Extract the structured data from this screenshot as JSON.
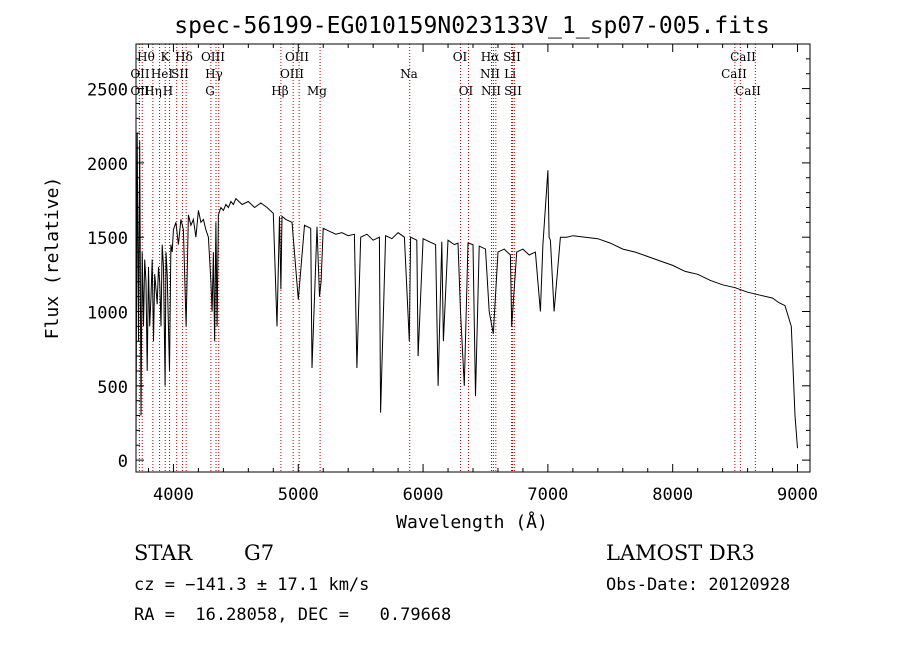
{
  "chart_data": {
    "type": "line",
    "title": "spec-56199-EG010159N023133V_1_sp07-005.fits",
    "xlabel": "Wavelength (Å)",
    "ylabel": "Flux (relative)",
    "xlim": [
      3700,
      9100
    ],
    "ylim": [
      -80,
      2800
    ],
    "x_ticks": [
      4000,
      5000,
      6000,
      7000,
      8000,
      9000
    ],
    "y_ticks": [
      0,
      500,
      1000,
      1500,
      2000,
      2500
    ],
    "series": [
      {
        "name": "spectrum",
        "x": [
          3700,
          3710,
          3720,
          3730,
          3740,
          3750,
          3760,
          3770,
          3780,
          3790,
          3800,
          3810,
          3820,
          3830,
          3840,
          3850,
          3860,
          3870,
          3880,
          3890,
          3900,
          3910,
          3920,
          3933,
          3940,
          3950,
          3968,
          3980,
          3990,
          4000,
          4020,
          4040,
          4060,
          4080,
          4101,
          4120,
          4140,
          4160,
          4180,
          4200,
          4220,
          4240,
          4260,
          4280,
          4300,
          4310,
          4320,
          4330,
          4340,
          4350,
          4360,
          4380,
          4400,
          4420,
          4440,
          4460,
          4480,
          4500,
          4550,
          4600,
          4650,
          4700,
          4750,
          4800,
          4830,
          4850,
          4861,
          4870,
          4900,
          4950,
          5000,
          5050,
          5100,
          5110,
          5150,
          5170,
          5183,
          5200,
          5250,
          5300,
          5350,
          5400,
          5450,
          5470,
          5500,
          5550,
          5600,
          5650,
          5660,
          5700,
          5750,
          5800,
          5850,
          5890,
          5900,
          5950,
          5960,
          6000,
          6050,
          6100,
          6120,
          6150,
          6163,
          6200,
          6250,
          6280,
          6300,
          6330,
          6360,
          6400,
          6420,
          6450,
          6500,
          6530,
          6563,
          6600,
          6650,
          6700,
          6710,
          6750,
          6800,
          6850,
          6900,
          6940,
          6960,
          7000,
          7010,
          7020,
          7050,
          7100,
          7150,
          7200,
          7300,
          7400,
          7500,
          7600,
          7700,
          7800,
          7900,
          8000,
          8100,
          8200,
          8300,
          8400,
          8500,
          8600,
          8700,
          8800,
          8850,
          8900,
          8950,
          8980,
          9000
        ],
        "values": [
          120,
          2200,
          800,
          2150,
          300,
          1400,
          900,
          1350,
          1200,
          600,
          1300,
          900,
          1100,
          1350,
          800,
          1250,
          1150,
          1050,
          1300,
          1200,
          900,
          1450,
          1300,
          500,
          1400,
          1250,
          600,
          1450,
          1400,
          1550,
          1600,
          1450,
          1620,
          1550,
          900,
          1650,
          1580,
          1620,
          1500,
          1680,
          1600,
          1620,
          1550,
          1500,
          1200,
          1000,
          1400,
          800,
          1600,
          900,
          1650,
          1700,
          1680,
          1720,
          1700,
          1740,
          1720,
          1760,
          1720,
          1740,
          1700,
          1730,
          1700,
          1660,
          900,
          1640,
          1150,
          1640,
          1620,
          1600,
          1080,
          1580,
          1560,
          620,
          1570,
          1100,
          1200,
          1560,
          1540,
          1520,
          1530,
          1510,
          1520,
          620,
          1500,
          1520,
          1480,
          1500,
          320,
          1510,
          1490,
          1530,
          1500,
          800,
          1500,
          1480,
          700,
          1490,
          1470,
          1450,
          500,
          1470,
          800,
          1480,
          1450,
          1460,
          1000,
          500,
          1460,
          1450,
          430,
          1440,
          1420,
          1000,
          850,
          1400,
          1420,
          1380,
          900,
          1400,
          1420,
          1380,
          1400,
          1000,
          1450,
          1950,
          1500,
          1480,
          1000,
          1500,
          1500,
          1510,
          1500,
          1490,
          1460,
          1420,
          1400,
          1370,
          1340,
          1310,
          1270,
          1250,
          1210,
          1180,
          1160,
          1130,
          1110,
          1090,
          1060,
          1040,
          900,
          300,
          80
        ]
      }
    ],
    "line_labels": {
      "row1": [
        "Hθ",
        "K",
        "Hδ",
        "OIII",
        "OIII",
        "Hα",
        "OI",
        "SII",
        "CaII"
      ],
      "row2": [
        "OII",
        "HeI",
        "SII",
        "Hγ",
        "OIII",
        "Na",
        "NII",
        "Li",
        "CaII"
      ],
      "row3": [
        "OII",
        "Hη",
        "H",
        "G",
        "Hβ",
        "Mg",
        "OI",
        "NII",
        "SII",
        "CaII"
      ]
    },
    "line_markers": [
      3727,
      3750,
      3835,
      3889,
      3934,
      3969,
      4026,
      4072,
      4102,
      4300,
      4341,
      4363,
      4861,
      4959,
      5007,
      5175,
      5893,
      6300,
      6364,
      6548,
      6563,
      6583,
      6708,
      6717,
      6731,
      8498,
      8542,
      8662
    ]
  },
  "info": {
    "object_class": "STAR",
    "subclass": "G7",
    "survey": "LAMOST DR3",
    "redshift": "cz = −141.3 ± 17.1 km/s",
    "obs_date": "Obs-Date: 20120928",
    "coords": "RA =  16.28058, DEC =   0.79668"
  },
  "colors": {
    "spectrum": "#000000",
    "marker": "#b00000",
    "axis": "#000000"
  }
}
